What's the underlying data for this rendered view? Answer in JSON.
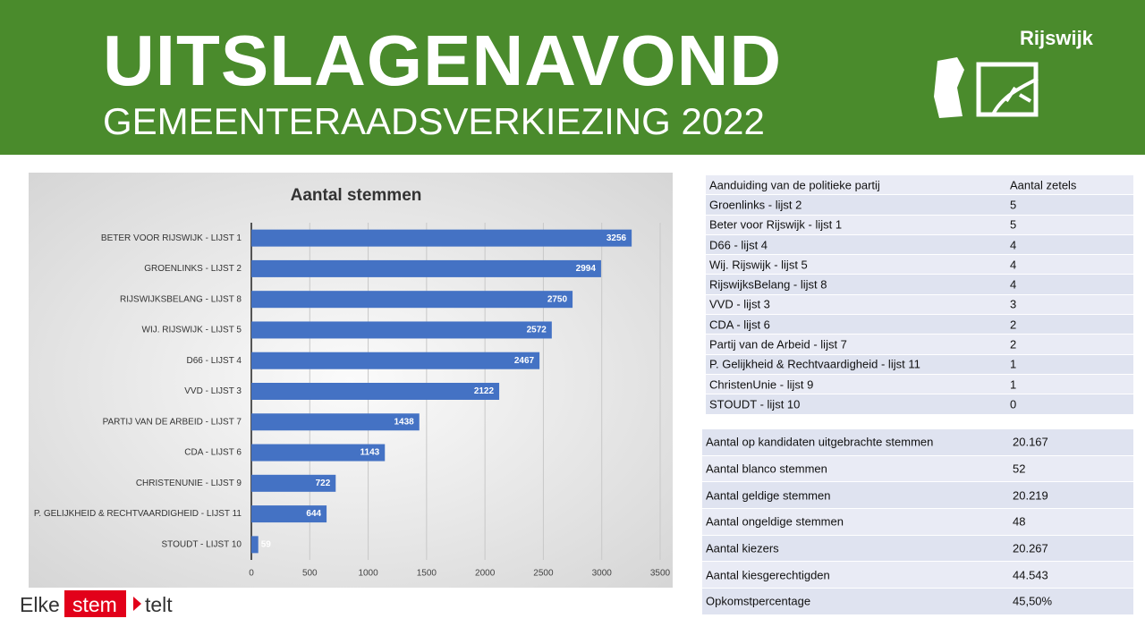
{
  "header": {
    "title": "UITSLAGENAVOND",
    "subtitle": "GEMEENTERAADSVERKIEZING 2022",
    "logo": "Rijswijk"
  },
  "chart_data": {
    "type": "bar",
    "orientation": "horizontal",
    "title": "Aantal stemmen",
    "categories": [
      "BETER VOOR RIJSWIJK - LIJST 1",
      "GROENLINKS - LIJST 2",
      "RIJSWIJKSBELANG - LIJST 8",
      "WIJ. RIJSWIJK - LIJST 5",
      "D66 - LIJST 4",
      "VVD - LIJST 3",
      "PARTIJ VAN DE ARBEID - LIJST 7",
      "CDA - LIJST 6",
      "CHRISTENUNIE - LIJST 9",
      "P. GELIJKHEID & RECHTVAARDIGHEID - LIJST 11",
      "STOUDT - LIJST 10"
    ],
    "values": [
      3256,
      2994,
      2750,
      2572,
      2467,
      2122,
      1438,
      1143,
      722,
      644,
      59
    ],
    "color": "#4472c4",
    "xlim": [
      0,
      3500
    ],
    "xticks": [
      0,
      500,
      1000,
      1500,
      2000,
      2500,
      3000,
      3500
    ],
    "grid": true
  },
  "seats_table": {
    "header": [
      "Aanduiding van de politieke partij",
      "Aantal zetels"
    ],
    "rows": [
      [
        "Groenlinks - lijst 2",
        5
      ],
      [
        "Beter voor Rijswijk - lijst 1",
        5
      ],
      [
        "D66 - lijst 4",
        4
      ],
      [
        "Wij. Rijswijk - lijst 5",
        4
      ],
      [
        "RijswijksBelang - lijst 8",
        4
      ],
      [
        "VVD - lijst 3",
        3
      ],
      [
        "CDA - lijst 6",
        2
      ],
      [
        "Partij van de Arbeid - lijst 7",
        2
      ],
      [
        "P. Gelijkheid & Rechtvaardigheid - lijst 11",
        1
      ],
      [
        "ChristenUnie - lijst 9",
        1
      ],
      [
        "STOUDT - lijst 10",
        0
      ]
    ]
  },
  "stats_table": {
    "rows": [
      [
        "Aantal op kandidaten uitgebrachte stemmen",
        "20.167"
      ],
      [
        "Aantal blanco stemmen",
        "52"
      ],
      [
        "Aantal geldige stemmen",
        "20.219"
      ],
      [
        "Aantal ongeldige stemmen",
        "48"
      ],
      [
        "Aantal kiezers",
        "20.267"
      ],
      [
        "Aantal kiesgerechtigden",
        "44.543"
      ],
      [
        "Opkomstpercentage",
        "45,50%"
      ]
    ]
  },
  "footer": {
    "slogan": [
      "Elke",
      "stem",
      "telt"
    ]
  }
}
